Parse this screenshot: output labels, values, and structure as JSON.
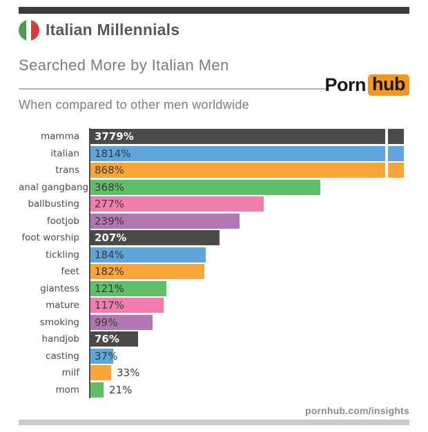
{
  "header": {
    "title": "Italian Millennials",
    "top_bar_color": "#3b3b3b",
    "flag_colors": {
      "green": "#4c9e50",
      "white": "#ffffff",
      "red": "#dd3a38"
    }
  },
  "section": {
    "title": "Searched More by Italian Men",
    "subtitle": "When compared to other men worldwide"
  },
  "logo": {
    "text_main": "Porn",
    "text_badge": "hub",
    "badge_color": "#f7971d",
    "text_color": "#181818"
  },
  "footer": {
    "url": "pornhub.com/insights",
    "bottom_bar_color": "#c9c9c9"
  },
  "chart_data": {
    "type": "bar",
    "orientation": "horizontal",
    "title": "Searched More by Italian Men",
    "subtitle": "When compared to other men worldwide",
    "xlabel": "",
    "ylabel": "",
    "unit": "%",
    "xlim": [
      0,
      500
    ],
    "grid": false,
    "legend": false,
    "categories": [
      "mamma",
      "italian",
      "trans",
      "anal gangbang",
      "ballbusting",
      "footjob",
      "foot worship",
      "tickling",
      "feet",
      "giantess",
      "mature",
      "smoking",
      "handjob",
      "casting",
      "milf",
      "mom"
    ],
    "values": [
      3779,
      1814,
      868,
      368,
      277,
      239,
      207,
      184,
      182,
      121,
      117,
      99,
      76,
      37,
      33,
      21
    ],
    "value_labels": [
      "3779%",
      "1814%",
      "868%",
      "368%",
      "277%",
      "239%",
      "207%",
      "184%",
      "182%",
      "121%",
      "117%",
      "99%",
      "76%",
      "37%",
      "33%",
      "21%"
    ],
    "clipped_over_axis_max": [
      "mamma",
      "italian",
      "trans"
    ],
    "value_label_inside": [
      true,
      true,
      true,
      true,
      true,
      true,
      true,
      true,
      true,
      true,
      true,
      true,
      true,
      true,
      false,
      false
    ],
    "palette_cycle": [
      "#4a4a4a",
      "#5da5da",
      "#faa43a",
      "#60bd68",
      "#f17cb0",
      "#b276b2"
    ],
    "dark_bar_color": "#4a4a4a",
    "axis_line_color": "#4a4a4a",
    "label_color": "#4a4a4a",
    "value_text_on_color": "#3a3a3a",
    "value_text_on_dark": "#ffffff"
  }
}
